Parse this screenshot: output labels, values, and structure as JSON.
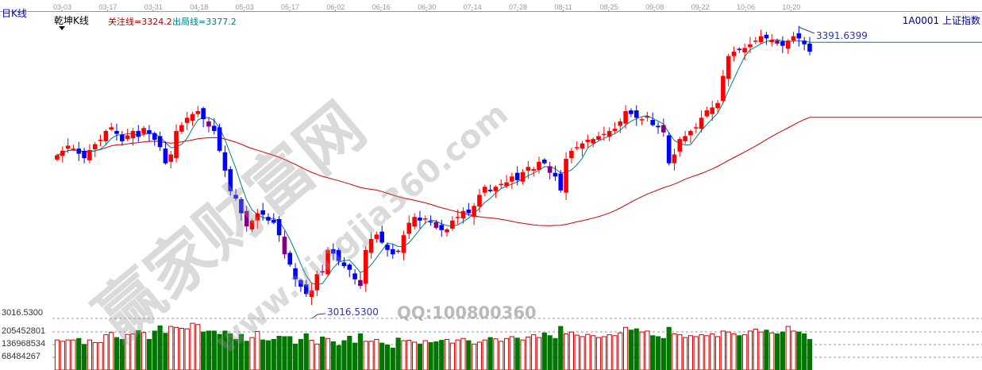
{
  "header": {
    "period": "日K线",
    "indicator": "乾坤K线",
    "focus_line": "关注线=3324.2",
    "exit_line": "出局线=3377.2",
    "symbol": "1A0001 上证指数"
  },
  "watermark": {
    "main": "赢家财富网",
    "url": "www.yingjia360.com",
    "qq": "QQ:100800360"
  },
  "colors": {
    "up": "#ff0000",
    "down": "#0000ff",
    "special": "#800080",
    "ma_short": "#008080",
    "ma_long": "#cc0000",
    "vol_up": "#cc0000",
    "vol_down": "#007700"
  },
  "chart_data": {
    "type": "candlestick",
    "date_ticks": [
      "03-03",
      "03-17",
      "03-31",
      "04-18",
      "05-03",
      "05-17",
      "06-02",
      "06-16",
      "06-30",
      "07-14",
      "07-28",
      "08-11",
      "08-25",
      "09-08",
      "09-22",
      "10-06",
      "10-20"
    ],
    "high_label": "3391.6399",
    "low_label": "3016.5300",
    "price_range": [
      3016.53,
      3391.6399
    ],
    "close": [
      3229,
      3235,
      3242,
      3238,
      3231,
      3225,
      3236,
      3244,
      3250,
      3262,
      3267,
      3258,
      3248,
      3256,
      3262,
      3254,
      3266,
      3258,
      3250,
      3240,
      3218,
      3230,
      3262,
      3270,
      3280,
      3285,
      3289,
      3278,
      3268,
      3262,
      3235,
      3208,
      3180,
      3170,
      3150,
      3132,
      3140,
      3150,
      3148,
      3140,
      3137,
      3120,
      3094,
      3080,
      3060,
      3050,
      3040,
      3045,
      3067,
      3070,
      3100,
      3095,
      3085,
      3078,
      3073,
      3060,
      3051,
      3100,
      3115,
      3121,
      3110,
      3100,
      3094,
      3098,
      3120,
      3137,
      3145,
      3140,
      3143,
      3138,
      3130,
      3127,
      3128,
      3140,
      3145,
      3153,
      3150,
      3160,
      3175,
      3186,
      3180,
      3186,
      3190,
      3192,
      3200,
      3195,
      3206,
      3213,
      3210,
      3220,
      3218,
      3205,
      3200,
      3181,
      3224,
      3235,
      3240,
      3245,
      3250,
      3251,
      3255,
      3258,
      3262,
      3265,
      3275,
      3289,
      3285,
      3280,
      3278,
      3282,
      3270,
      3267,
      3260,
      3218,
      3230,
      3251,
      3255,
      3262,
      3267,
      3280,
      3290,
      3294,
      3300,
      3337,
      3364,
      3370,
      3372,
      3375,
      3380,
      3385,
      3391,
      3388,
      3386,
      3381,
      3378,
      3385,
      3391,
      3388,
      3380,
      3370
    ],
    "volume_axis": {
      "ticks": [
        "3016.5300",
        "205452801",
        "136968534",
        "68484267"
      ]
    },
    "volume": [
      162000000.0,
      155000000.0,
      162000000.0,
      162000000.0,
      170000000.0,
      138000000.0,
      162000000.0,
      148000000.0,
      148000000.0,
      190000000.0,
      202000000.0,
      175000000.0,
      165000000.0,
      192000000.0,
      195000000.0,
      212000000.0,
      202000000.0,
      165000000.0,
      210000000.0,
      238000000.0,
      198000000.0,
      235000000.0,
      230000000.0,
      225000000.0,
      222000000.0,
      252000000.0,
      245000000.0,
      205000000.0,
      210000000.0,
      210000000.0,
      192000000.0,
      210000000.0,
      195000000.0,
      165000000.0,
      192000000.0,
      155000000.0,
      175000000.0,
      208000000.0,
      162000000.0,
      158000000.0,
      165000000.0,
      182000000.0,
      180000000.0,
      180000000.0,
      140000000.0,
      165000000.0,
      195000000.0,
      160000000.0,
      140000000.0,
      178000000.0,
      170000000.0,
      152000000.0,
      132000000.0,
      158000000.0,
      182000000.0,
      145000000.0,
      195000000.0,
      155000000.0,
      155000000.0,
      165000000.0,
      145000000.0,
      135000000.0,
      118000000.0,
      172000000.0,
      158000000.0,
      160000000.0,
      150000000.0,
      140000000.0,
      158000000.0,
      148000000.0,
      152000000.0,
      160000000.0,
      165000000.0,
      145000000.0,
      162000000.0,
      170000000.0,
      158000000.0,
      140000000.0,
      150000000.0,
      162000000.0,
      175000000.0,
      168000000.0,
      155000000.0,
      170000000.0,
      180000000.0,
      172000000.0,
      162000000.0,
      178000000.0,
      190000000.0,
      175000000.0,
      200000000.0,
      185000000.0,
      170000000.0,
      235000000.0,
      195000000.0,
      205000000.0,
      188000000.0,
      180000000.0,
      192000000.0,
      185000000.0,
      175000000.0,
      180000000.0,
      190000000.0,
      185000000.0,
      200000000.0,
      230000000.0,
      215000000.0,
      222000000.0,
      205000000.0,
      210000000.0,
      185000000.0,
      180000000.0,
      170000000.0,
      230000000.0,
      195000000.0,
      190000000.0,
      175000000.0,
      185000000.0,
      180000000.0,
      190000000.0,
      185000000.0,
      195000000.0,
      180000000.0,
      210000000.0,
      205000000.0,
      195000000.0,
      185000000.0,
      190000000.0,
      210000000.0,
      220000000.0,
      205000000.0,
      215000000.0,
      200000000.0,
      195000000.0,
      205000000.0,
      235000000.0,
      210000000.0,
      205000000.0,
      195000000.0,
      165000000.0
    ],
    "ma_short_period": 5,
    "ma_long_period": 60
  }
}
